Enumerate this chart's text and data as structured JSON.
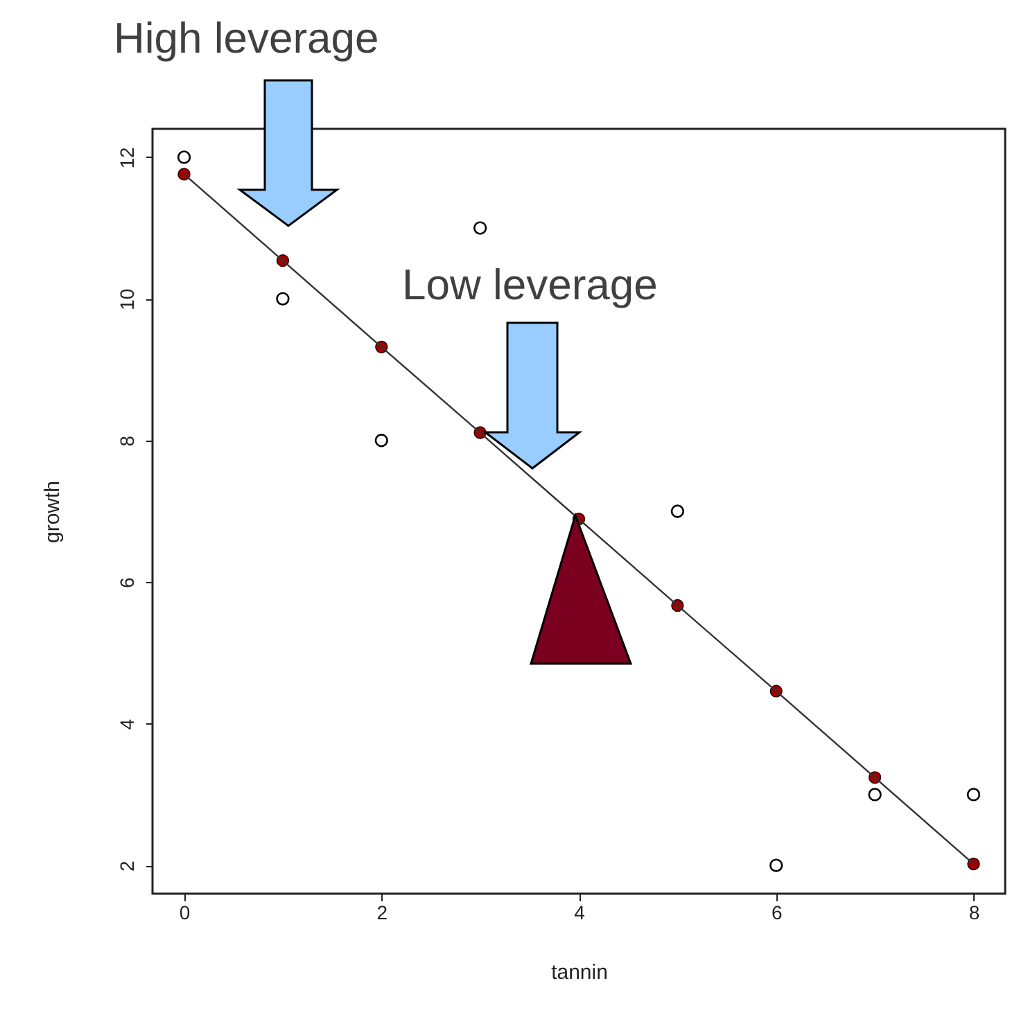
{
  "chart_data": {
    "type": "scatter",
    "xlabel": "tannin",
    "ylabel": "growth",
    "x": [
      0,
      1,
      2,
      3,
      4,
      5,
      6,
      7,
      8
    ],
    "series": [
      {
        "color": "#000000",
        "values": [
          12,
          10,
          8,
          11,
          null,
          7,
          2,
          3,
          3
        ]
      },
      {
        "type": "line",
        "marker": "none",
        "color": "#333333",
        "values": [
          11.76,
          10.54,
          9.32,
          8.11,
          6.89,
          5.67,
          4.46,
          3.24,
          2.02
        ]
      },
      {
        "color": "#a00000",
        "values": [
          11.76,
          10.54,
          9.32,
          8.11,
          6.89,
          5.67,
          4.46,
          3.24,
          2.02
        ]
      }
    ],
    "xlim": [
      -0.32,
      8.32
    ],
    "xticks": [
      0,
      2,
      4,
      6,
      8
    ],
    "ylim": [
      1.6,
      12.4
    ],
    "yticks": [
      2,
      4,
      6,
      8,
      10,
      12
    ],
    "marker": "circle",
    "line_style": "solid",
    "annotations": [
      "High leverage",
      "Low leverage"
    ]
  }
}
